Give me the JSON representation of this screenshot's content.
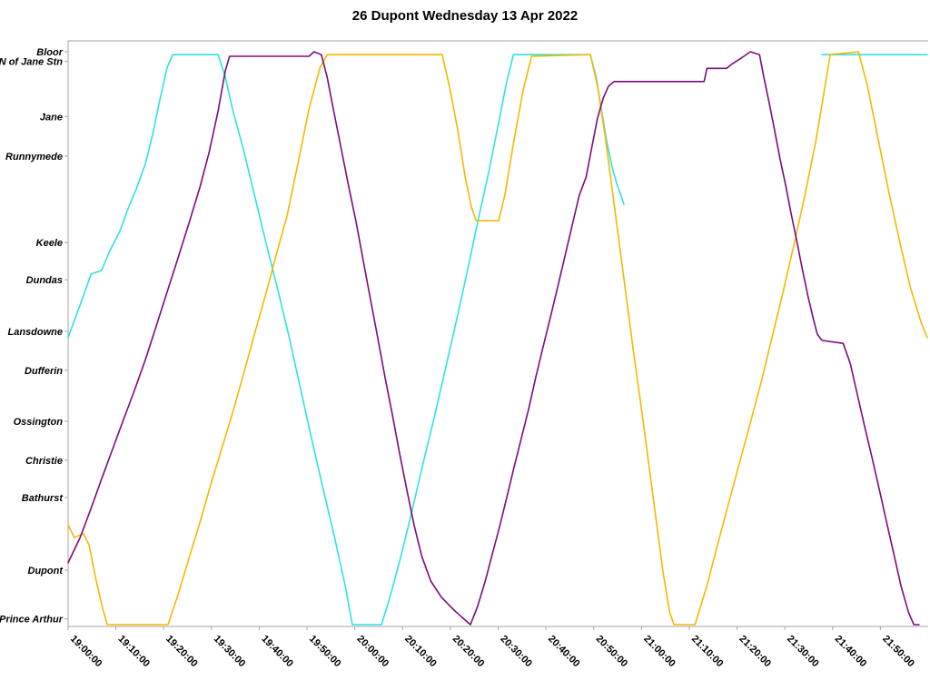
{
  "title": "26 Dupont Wednesday 13 Apr 2022",
  "chart_data": {
    "type": "line",
    "title": "26 Dupont Wednesday 13 Apr 2022",
    "xlabel": "",
    "ylabel": "",
    "legend": "none",
    "grid": false,
    "axis_color": "#a6a6a6",
    "label_color": "#000000",
    "x_axis": {
      "range_minutes": [
        0,
        180
      ],
      "tick_minutes": [
        0,
        10,
        20,
        30,
        40,
        50,
        60,
        70,
        80,
        90,
        100,
        110,
        120,
        130,
        140,
        150,
        160,
        170
      ],
      "tick_labels": [
        "19:00:00",
        "19:10:00",
        "19:20:00",
        "19:30:00",
        "19:40:00",
        "19:50:00",
        "20:00:00",
        "20:10:00",
        "20:20:00",
        "20:30:00",
        "20:40:00",
        "20:50:00",
        "21:00:00",
        "21:10:00",
        "21:20:00",
        "21:30:00",
        "21:40:00",
        "21:50:00"
      ]
    },
    "y_axis": {
      "range": [
        0,
        100
      ],
      "stations": [
        {
          "label": "Bloor",
          "value": 100
        },
        {
          "label": "N of Jane Stn",
          "value": 98.3
        },
        {
          "label": "Jane",
          "value": 88.7
        },
        {
          "label": "Runnymede",
          "value": 81.8
        },
        {
          "label": "Keele",
          "value": 66.7
        },
        {
          "label": "Dundas",
          "value": 60.2
        },
        {
          "label": "Lansdowne",
          "value": 51.2
        },
        {
          "label": "Dufferin",
          "value": 44.4
        },
        {
          "label": "Ossington",
          "value": 35.5
        },
        {
          "label": "Christie",
          "value": 28.7
        },
        {
          "label": "Bathurst",
          "value": 22.2
        },
        {
          "label": "Dupont",
          "value": 9.5
        },
        {
          "label": "Prince Arthur",
          "value": 1.0
        }
      ]
    },
    "series": [
      {
        "name": "vehicle-cyan",
        "color": "#2ee2e2",
        "segments": [
          [
            [
              0,
              50.1
            ],
            [
              2.9,
              56.7
            ],
            [
              4.8,
              61.2
            ],
            [
              7,
              61.8
            ],
            [
              8.6,
              65
            ],
            [
              10.8,
              68.6
            ],
            [
              12.4,
              72.3
            ],
            [
              14.3,
              76.1
            ],
            [
              16.2,
              80.5
            ],
            [
              17.7,
              85.6
            ],
            [
              19.2,
              91.6
            ],
            [
              20.7,
              97.2
            ],
            [
              21.9,
              99.5
            ],
            [
              31.4,
              99.5
            ],
            [
              32.9,
              95.6
            ],
            [
              34.4,
              90
            ],
            [
              36.7,
              82.9
            ],
            [
              39,
              75
            ],
            [
              41.3,
              67
            ],
            [
              43.7,
              59.1
            ],
            [
              46.2,
              50.4
            ],
            [
              48.5,
              41.7
            ],
            [
              50.8,
              33
            ],
            [
              53.2,
              24.3
            ],
            [
              55.7,
              15.5
            ],
            [
              58,
              6.8
            ],
            [
              59.5,
              0
            ],
            [
              65.6,
              0
            ],
            [
              67.5,
              5.2
            ],
            [
              69.8,
              12.4
            ],
            [
              72.1,
              20.3
            ],
            [
              74.3,
              28.2
            ],
            [
              76.6,
              36.1
            ],
            [
              78.9,
              44.4
            ],
            [
              81.2,
              52.8
            ],
            [
              83.5,
              61.5
            ],
            [
              85.7,
              70.2
            ],
            [
              88,
              78.9
            ],
            [
              89.9,
              86.8
            ],
            [
              91.8,
              94.8
            ],
            [
              93.2,
              99.5
            ],
            [
              109.3,
              99.5
            ],
            [
              110.5,
              95.6
            ],
            [
              111.6,
              90
            ],
            [
              112.7,
              84.5
            ],
            [
              113.9,
              79.7
            ],
            [
              115,
              76.6
            ],
            [
              116.3,
              73.4
            ]
          ],
          [
            [
              157.8,
              99.5
            ],
            [
              179.8,
              99.5
            ]
          ]
        ]
      },
      {
        "name": "vehicle-gold",
        "color": "#f5b800",
        "segments": [
          [
            [
              0,
              17.4
            ],
            [
              1.3,
              15.2
            ],
            [
              3.2,
              15.9
            ],
            [
              4.4,
              13.9
            ],
            [
              5.9,
              7.6
            ],
            [
              7.2,
              2.9
            ],
            [
              8.2,
              0
            ],
            [
              20.9,
              0
            ],
            [
              23,
              5.2
            ],
            [
              25.3,
              11.6
            ],
            [
              27.6,
              17.9
            ],
            [
              29.8,
              24.3
            ],
            [
              32.1,
              30.6
            ],
            [
              34.4,
              36.9
            ],
            [
              36.7,
              43.7
            ],
            [
              39,
              50.7
            ],
            [
              41.3,
              57.5
            ],
            [
              43.5,
              64.4
            ],
            [
              45.8,
              71.3
            ],
            [
              48.1,
              80.5
            ],
            [
              50.4,
              90
            ],
            [
              52.7,
              97.2
            ],
            [
              54.2,
              99.5
            ],
            [
              78.3,
              99.5
            ],
            [
              79.8,
              94
            ],
            [
              81.6,
              86.1
            ],
            [
              83.1,
              78.1
            ],
            [
              84.4,
              72.9
            ],
            [
              85.4,
              70.5
            ],
            [
              90.1,
              70.5
            ],
            [
              91.4,
              75
            ],
            [
              93.3,
              84.5
            ],
            [
              95.2,
              93.2
            ],
            [
              97,
              99.2
            ],
            [
              109.3,
              99.5
            ],
            [
              110.8,
              94
            ],
            [
              112.4,
              85.3
            ],
            [
              113.9,
              75.8
            ],
            [
              115.4,
              66.3
            ],
            [
              116.9,
              56.7
            ],
            [
              118.4,
              47.2
            ],
            [
              120,
              37.7
            ],
            [
              121.5,
              28.2
            ],
            [
              123,
              18.7
            ],
            [
              124.5,
              9.2
            ],
            [
              125.9,
              2.1
            ],
            [
              126.8,
              0
            ],
            [
              131.2,
              0
            ],
            [
              133.7,
              6.8
            ],
            [
              135.9,
              13.9
            ],
            [
              138.2,
              21.1
            ],
            [
              140.5,
              28.2
            ],
            [
              142.8,
              35.3
            ],
            [
              145.1,
              42.5
            ],
            [
              147.3,
              50.1
            ],
            [
              149.6,
              58
            ],
            [
              151.9,
              66.3
            ],
            [
              154.2,
              75
            ],
            [
              156.5,
              84.5
            ],
            [
              158.4,
              94
            ],
            [
              159.5,
              99.5
            ],
            [
              165.4,
              100
            ],
            [
              167.3,
              94
            ],
            [
              169.4,
              85.3
            ],
            [
              171.7,
              75.8
            ],
            [
              174,
              67
            ],
            [
              176.2,
              59.1
            ],
            [
              178.5,
              52.8
            ],
            [
              179.8,
              50.1
            ]
          ]
        ]
      },
      {
        "name": "vehicle-purple",
        "color": "#7b0c7b",
        "segments": [
          [
            [
              0,
              10.8
            ],
            [
              2.5,
              15.2
            ],
            [
              4.8,
              20.3
            ],
            [
              7,
              25.4
            ],
            [
              9.3,
              30.6
            ],
            [
              11.6,
              35.8
            ],
            [
              13.9,
              40.9
            ],
            [
              16.2,
              46.3
            ],
            [
              18.4,
              52
            ],
            [
              20.7,
              58
            ],
            [
              23,
              64
            ],
            [
              25.3,
              70.1
            ],
            [
              27.6,
              76.4
            ],
            [
              29.5,
              82.4
            ],
            [
              31.4,
              89.7
            ],
            [
              32.9,
              96.7
            ],
            [
              33.8,
              99.2
            ],
            [
              50.4,
              99.2
            ],
            [
              51.5,
              100
            ],
            [
              53,
              99.5
            ],
            [
              54.2,
              95.6
            ],
            [
              55.7,
              89.2
            ],
            [
              57.2,
              82.9
            ],
            [
              58.7,
              76.6
            ],
            [
              60.3,
              70.2
            ],
            [
              61.8,
              63.4
            ],
            [
              63.3,
              56.7
            ],
            [
              64.8,
              50.1
            ],
            [
              66.3,
              43.3
            ],
            [
              67.9,
              36.5
            ],
            [
              69.4,
              29.8
            ],
            [
              70.9,
              23.5
            ],
            [
              72.4,
              17.4
            ],
            [
              74,
              12
            ],
            [
              75.9,
              7.6
            ],
            [
              78.1,
              4.8
            ],
            [
              80.8,
              2.5
            ],
            [
              83.1,
              0.8
            ],
            [
              84.2,
              0
            ],
            [
              85.7,
              3.2
            ],
            [
              87.3,
              7.6
            ],
            [
              88.8,
              12.4
            ],
            [
              90.3,
              17.1
            ],
            [
              91.8,
              22.2
            ],
            [
              93.3,
              27.4
            ],
            [
              94.9,
              32.7
            ],
            [
              96.4,
              37.7
            ],
            [
              97.9,
              43.3
            ],
            [
              99.4,
              48.5
            ],
            [
              101,
              53.9
            ],
            [
              102.5,
              59.1
            ],
            [
              104,
              64.4
            ],
            [
              105.5,
              69.7
            ],
            [
              107,
              75
            ],
            [
              108.4,
              78.1
            ],
            [
              109.7,
              83.7
            ],
            [
              110.8,
              88.4
            ],
            [
              112,
              91.9
            ],
            [
              113.1,
              94
            ],
            [
              114.3,
              94.8
            ],
            [
              133.1,
              94.8
            ],
            [
              133.7,
              97.1
            ],
            [
              137.8,
              97.1
            ],
            [
              139,
              97.9
            ],
            [
              140.9,
              98.9
            ],
            [
              142.8,
              100
            ],
            [
              144.7,
              99.5
            ],
            [
              145.6,
              95.6
            ],
            [
              146.8,
              90.8
            ],
            [
              147.9,
              86.1
            ],
            [
              149,
              81.3
            ],
            [
              150.2,
              76.6
            ],
            [
              151.3,
              71.8
            ],
            [
              152.5,
              67
            ],
            [
              153.6,
              62.3
            ],
            [
              154.8,
              57.5
            ],
            [
              155.9,
              53.6
            ],
            [
              156.8,
              50.7
            ],
            [
              157.8,
              49.6
            ],
            [
              162.2,
              49.1
            ],
            [
              163.7,
              45.6
            ],
            [
              165.2,
              40.1
            ],
            [
              166.7,
              34.6
            ],
            [
              168.3,
              29
            ],
            [
              169.8,
              23.5
            ],
            [
              171.3,
              17.9
            ],
            [
              172.8,
              12.4
            ],
            [
              174.3,
              6.8
            ],
            [
              175.9,
              2.1
            ],
            [
              177,
              0
            ],
            [
              178.1,
              0
            ]
          ]
        ]
      }
    ]
  }
}
